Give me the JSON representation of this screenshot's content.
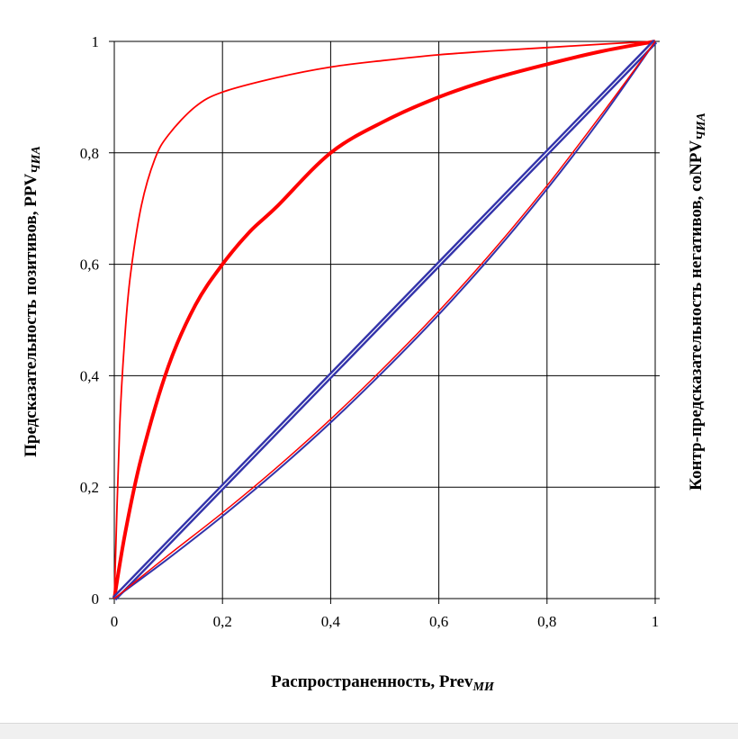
{
  "chart_data": {
    "type": "line",
    "xlim": [
      0,
      1
    ],
    "ylim": [
      0,
      1
    ],
    "grid": true,
    "x_ticks": [
      "0",
      "0,2",
      "0,4",
      "0,6",
      "0,8",
      "1"
    ],
    "y_ticks": [
      "0",
      "0,2",
      "0,4",
      "0,6",
      "0,8",
      "1"
    ],
    "xlabel": {
      "main": "Распространенность,  Prev",
      "sub": "МИ"
    },
    "ylabel": {
      "main": "Предсказательность позитивов, PPV",
      "sub": "ЧИА"
    },
    "y2label": {
      "main": "Контр-предсказательность негативов, coNPV",
      "sub": "ЧИА"
    },
    "colors": {
      "ppv": "#ff0000",
      "conpv": "#3333aa",
      "grid": "#000000"
    },
    "series": [
      {
        "style": "ppv-thin",
        "x": [
          0,
          0.01,
          0.02,
          0.03,
          0.05,
          0.075,
          0.1,
          0.15,
          0.2,
          0.3,
          0.4,
          0.5,
          0.6,
          0.7,
          0.8,
          0.9,
          1
        ],
        "y": [
          0,
          0.309,
          0.477,
          0.582,
          0.705,
          0.789,
          0.832,
          0.883,
          0.909,
          0.935,
          0.954,
          0.966,
          0.976,
          0.983,
          0.989,
          0.995,
          1
        ]
      },
      {
        "style": "ppv-thick",
        "x": [
          0,
          0.02,
          0.05,
          0.1,
          0.15,
          0.2,
          0.25,
          0.3,
          0.4,
          0.5,
          0.6,
          0.7,
          0.8,
          0.9,
          1
        ],
        "y": [
          0,
          0.117,
          0.253,
          0.417,
          0.527,
          0.6,
          0.658,
          0.703,
          0.8,
          0.857,
          0.9,
          0.933,
          0.959,
          0.982,
          1
        ]
      },
      {
        "style": "diagonal-double",
        "x": [
          0,
          1
        ],
        "y": [
          0,
          1
        ]
      },
      {
        "style": "conpv-lower",
        "x": [
          0,
          0.1,
          0.2,
          0.3,
          0.4,
          0.5,
          0.6,
          0.7,
          0.8,
          0.9,
          1
        ],
        "y": [
          0,
          0.072,
          0.148,
          0.229,
          0.316,
          0.41,
          0.51,
          0.618,
          0.735,
          0.862,
          1
        ]
      }
    ]
  }
}
